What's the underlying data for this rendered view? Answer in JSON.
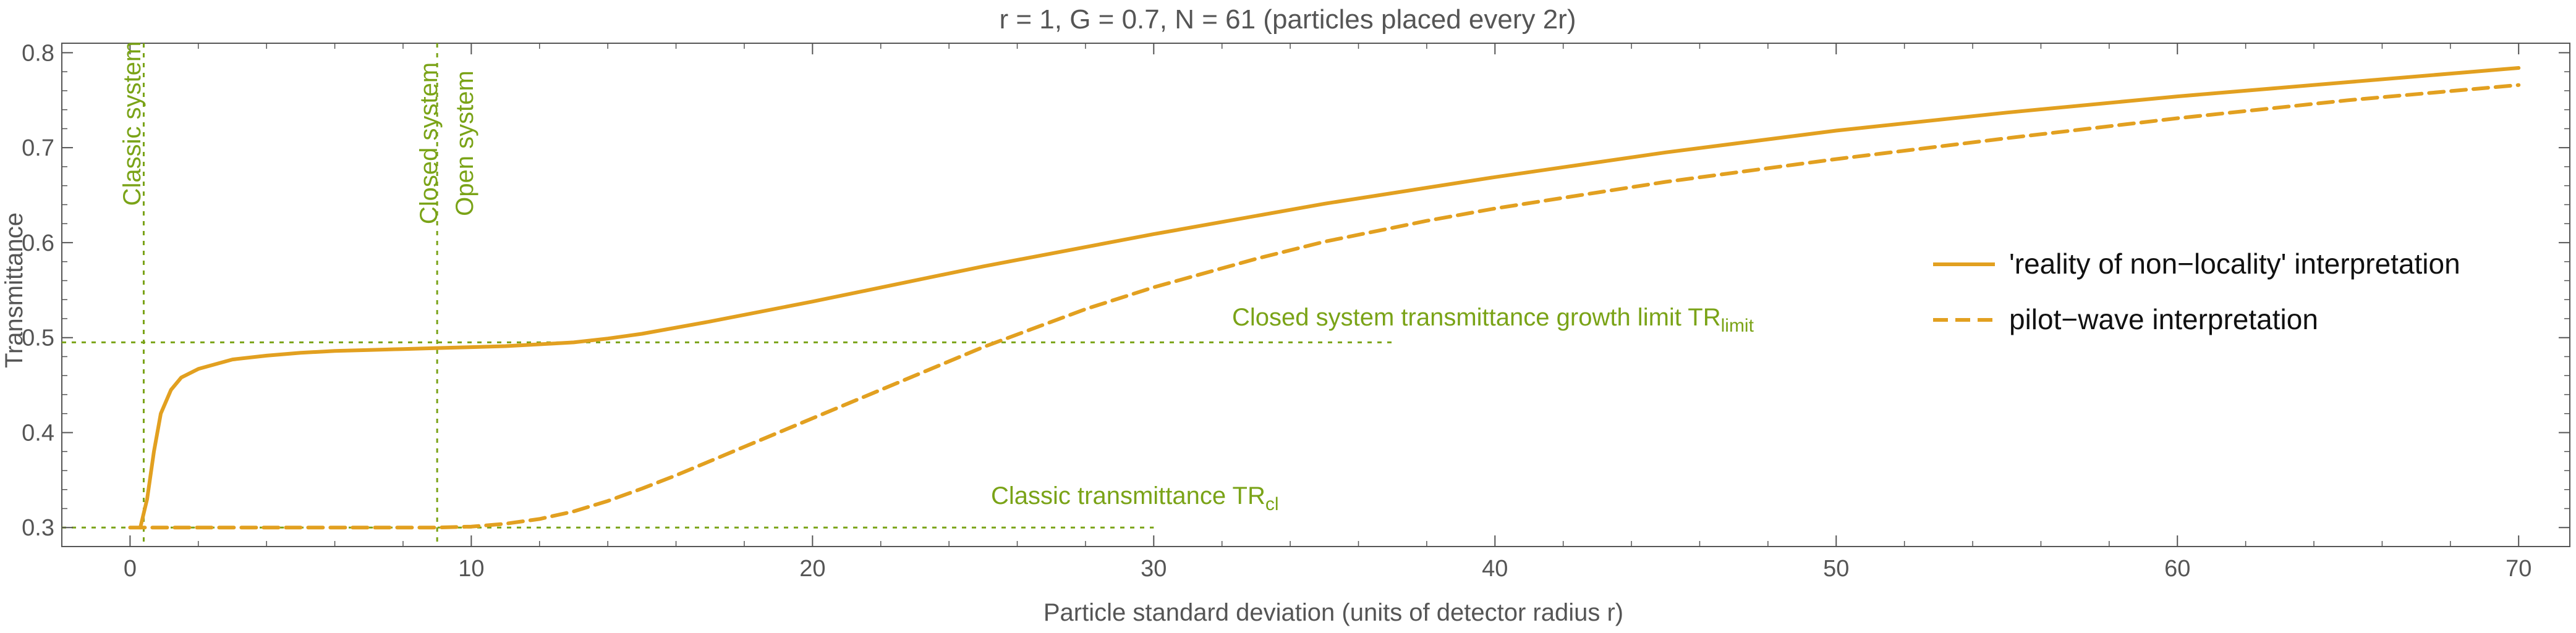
{
  "chart_data": {
    "type": "line",
    "title": "r = 1, G = 0.7, N = 61 (particles placed every 2r)",
    "xlabel": "Particle standard deviation (units of detector radius r)",
    "ylabel": "Transmittance",
    "xlim": [
      -2,
      71.5
    ],
    "ylim": [
      0.28,
      0.81
    ],
    "xticks": [
      0,
      10,
      20,
      30,
      40,
      50,
      60,
      70
    ],
    "yticks": [
      0.3,
      0.4,
      0.5,
      0.6,
      0.7,
      0.8
    ],
    "ytick_labels": [
      "0.3",
      "0.4",
      "0.5",
      "0.6",
      "0.7",
      "0.8"
    ],
    "grid": false,
    "legend_position": "right",
    "colors": {
      "series": "#e2a020",
      "annotation": "#7aa317",
      "axis": "#555555"
    },
    "series": [
      {
        "name": "'reality of non−locality' interpretation",
        "style": "solid",
        "x": [
          0.3,
          0.5,
          0.7,
          0.9,
          1.2,
          1.5,
          2,
          3,
          4,
          5,
          6,
          7,
          8,
          9,
          10,
          11,
          12,
          13,
          14,
          15,
          17,
          20,
          25,
          30,
          35,
          40,
          45,
          50,
          55,
          60,
          65,
          70
        ],
        "y": [
          0.3,
          0.33,
          0.38,
          0.42,
          0.445,
          0.458,
          0.467,
          0.477,
          0.481,
          0.484,
          0.486,
          0.487,
          0.488,
          0.489,
          0.49,
          0.491,
          0.493,
          0.495,
          0.499,
          0.504,
          0.517,
          0.538,
          0.575,
          0.609,
          0.641,
          0.669,
          0.695,
          0.718,
          0.737,
          0.754,
          0.769,
          0.784
        ]
      },
      {
        "name": "pilot−wave interpretation",
        "style": "dashed",
        "x": [
          0,
          5,
          9,
          10,
          11,
          12,
          13,
          14,
          15,
          16,
          18,
          20,
          22,
          25,
          28,
          30,
          33,
          35,
          38,
          40,
          45,
          50,
          55,
          60,
          65,
          70
        ],
        "y": [
          0.3,
          0.3,
          0.3,
          0.301,
          0.304,
          0.309,
          0.317,
          0.328,
          0.341,
          0.355,
          0.385,
          0.415,
          0.445,
          0.49,
          0.53,
          0.553,
          0.583,
          0.601,
          0.623,
          0.636,
          0.664,
          0.688,
          0.71,
          0.731,
          0.75,
          0.766
        ]
      }
    ],
    "reference_lines": [
      {
        "orientation": "vertical",
        "x": 0.4,
        "label": "Classic system"
      },
      {
        "orientation": "vertical",
        "x": 9,
        "label": "Closed system",
        "label2": "Open system"
      },
      {
        "orientation": "horizontal",
        "y": 0.495,
        "x_end": 37,
        "label": "Closed system transmittance growth limit TR",
        "label_sub": "limit"
      },
      {
        "orientation": "horizontal",
        "y": 0.3,
        "x_end": 30,
        "label": "Classic transmittance TR",
        "label_sub": "cl"
      }
    ]
  }
}
